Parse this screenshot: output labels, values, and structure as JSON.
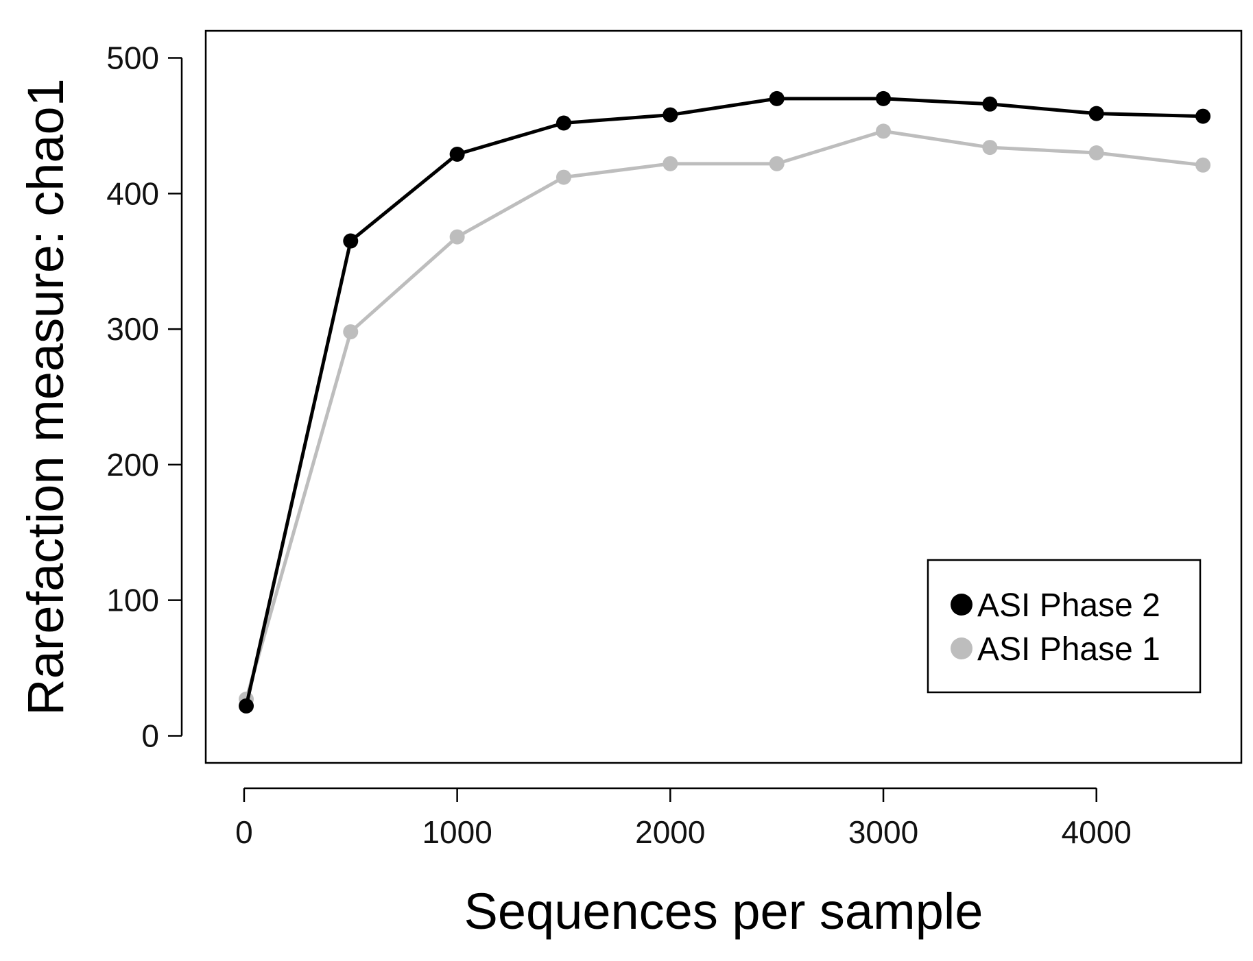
{
  "chart_data": {
    "type": "line",
    "title": "",
    "xlabel": "Sequences per sample",
    "ylabel": "Rarefaction measure: chao1",
    "xlim": [
      -180,
      4680
    ],
    "ylim": [
      -20,
      520
    ],
    "x_ticks": [
      "0",
      "1000",
      "2000",
      "3000",
      "4000"
    ],
    "y_ticks": [
      "0",
      "100",
      "200",
      "300",
      "400",
      "500"
    ],
    "grid": false,
    "legend_position": "bottom-right",
    "x": [
      10,
      500,
      1000,
      1500,
      2000,
      2500,
      3000,
      3500,
      4000,
      4500
    ],
    "series": [
      {
        "name": "ASI Phase 2",
        "color": "#000000",
        "values": [
          22,
          365,
          429,
          452,
          458,
          470,
          470,
          466,
          459,
          457
        ]
      },
      {
        "name": "ASI Phase 1",
        "color": "#bdbdbd",
        "values": [
          27,
          298,
          368,
          412,
          422,
          422,
          446,
          434,
          430,
          421
        ]
      }
    ]
  }
}
